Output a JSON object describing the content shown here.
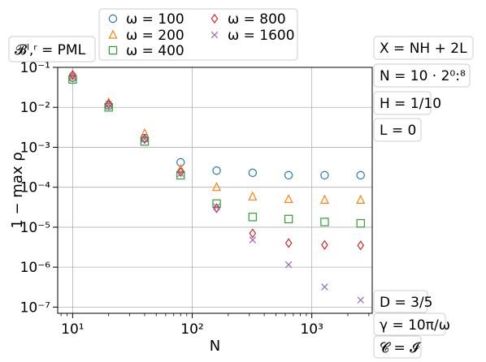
{
  "chart_data": {
    "type": "scatter",
    "title": "",
    "xlabel": "N",
    "ylabel": "1 − max ρ",
    "x_scale": "log",
    "y_scale": "log",
    "xlim": [
      7.5,
      3200
    ],
    "ylim": [
      7e-08,
      0.1
    ],
    "grid": true,
    "legend_position": "top-left",
    "x_ticks": [
      {
        "value": 10,
        "label": "10¹"
      },
      {
        "value": 100,
        "label": "10²"
      },
      {
        "value": 1000,
        "label": "10³"
      }
    ],
    "y_ticks": [
      {
        "value": 1e-07,
        "label": "10⁻⁷"
      },
      {
        "value": 1e-06,
        "label": "10⁻⁶"
      },
      {
        "value": 1e-05,
        "label": "10⁻⁵"
      },
      {
        "value": 0.0001,
        "label": "10⁻⁴"
      },
      {
        "value": 0.001,
        "label": "10⁻³"
      },
      {
        "value": 0.01,
        "label": "10⁻²"
      },
      {
        "value": 0.1,
        "label": "10⁻¹"
      }
    ],
    "x": [
      10,
      20,
      40,
      80,
      160,
      320,
      640,
      1280,
      2560
    ],
    "series": [
      {
        "name": "ω = 100",
        "marker": "circle",
        "color": "#1f77b4",
        "values": [
          0.055,
          0.011,
          0.0017,
          0.00042,
          0.00026,
          0.00023,
          0.0002,
          0.0002,
          0.0002
        ]
      },
      {
        "name": "ω = 200",
        "marker": "triangle",
        "color": "#ff7f0e",
        "values": [
          0.06,
          0.013,
          0.0022,
          0.00028,
          0.0001,
          5.8e-05,
          5e-05,
          4.8e-05,
          4.8e-05
        ]
      },
      {
        "name": "ω = 400",
        "marker": "square",
        "color": "#2ca02c",
        "values": [
          0.05,
          0.01,
          0.0014,
          0.0002,
          3.9e-05,
          1.8e-05,
          1.6e-05,
          1.35e-05,
          1.25e-05
        ]
      },
      {
        "name": "ω = 800",
        "marker": "diamond",
        "color": "#d62728",
        "values": [
          0.065,
          0.012,
          0.0016,
          0.00024,
          3e-05,
          7e-06,
          4e-06,
          3.6e-06,
          3.5e-06
        ]
      },
      {
        "name": "ω = 1600",
        "marker": "x",
        "color": "#9467bd",
        "values": [
          0.06,
          0.012,
          0.0016,
          0.00022,
          3.2e-05,
          4.8e-06,
          1.15e-06,
          3.2e-07,
          1.5e-07
        ]
      }
    ],
    "annotations": {
      "top_left": "𝓑ˡ,ʳ = PML",
      "right_top": [
        "X = NH + 2L",
        "N = 10 · 2⁰:⁸",
        "H = 1/10",
        "L = 0"
      ],
      "right_bottom": [
        "D = 3/5",
        "γ = 10π/ω",
        "𝓒 = 𝓘"
      ]
    }
  }
}
